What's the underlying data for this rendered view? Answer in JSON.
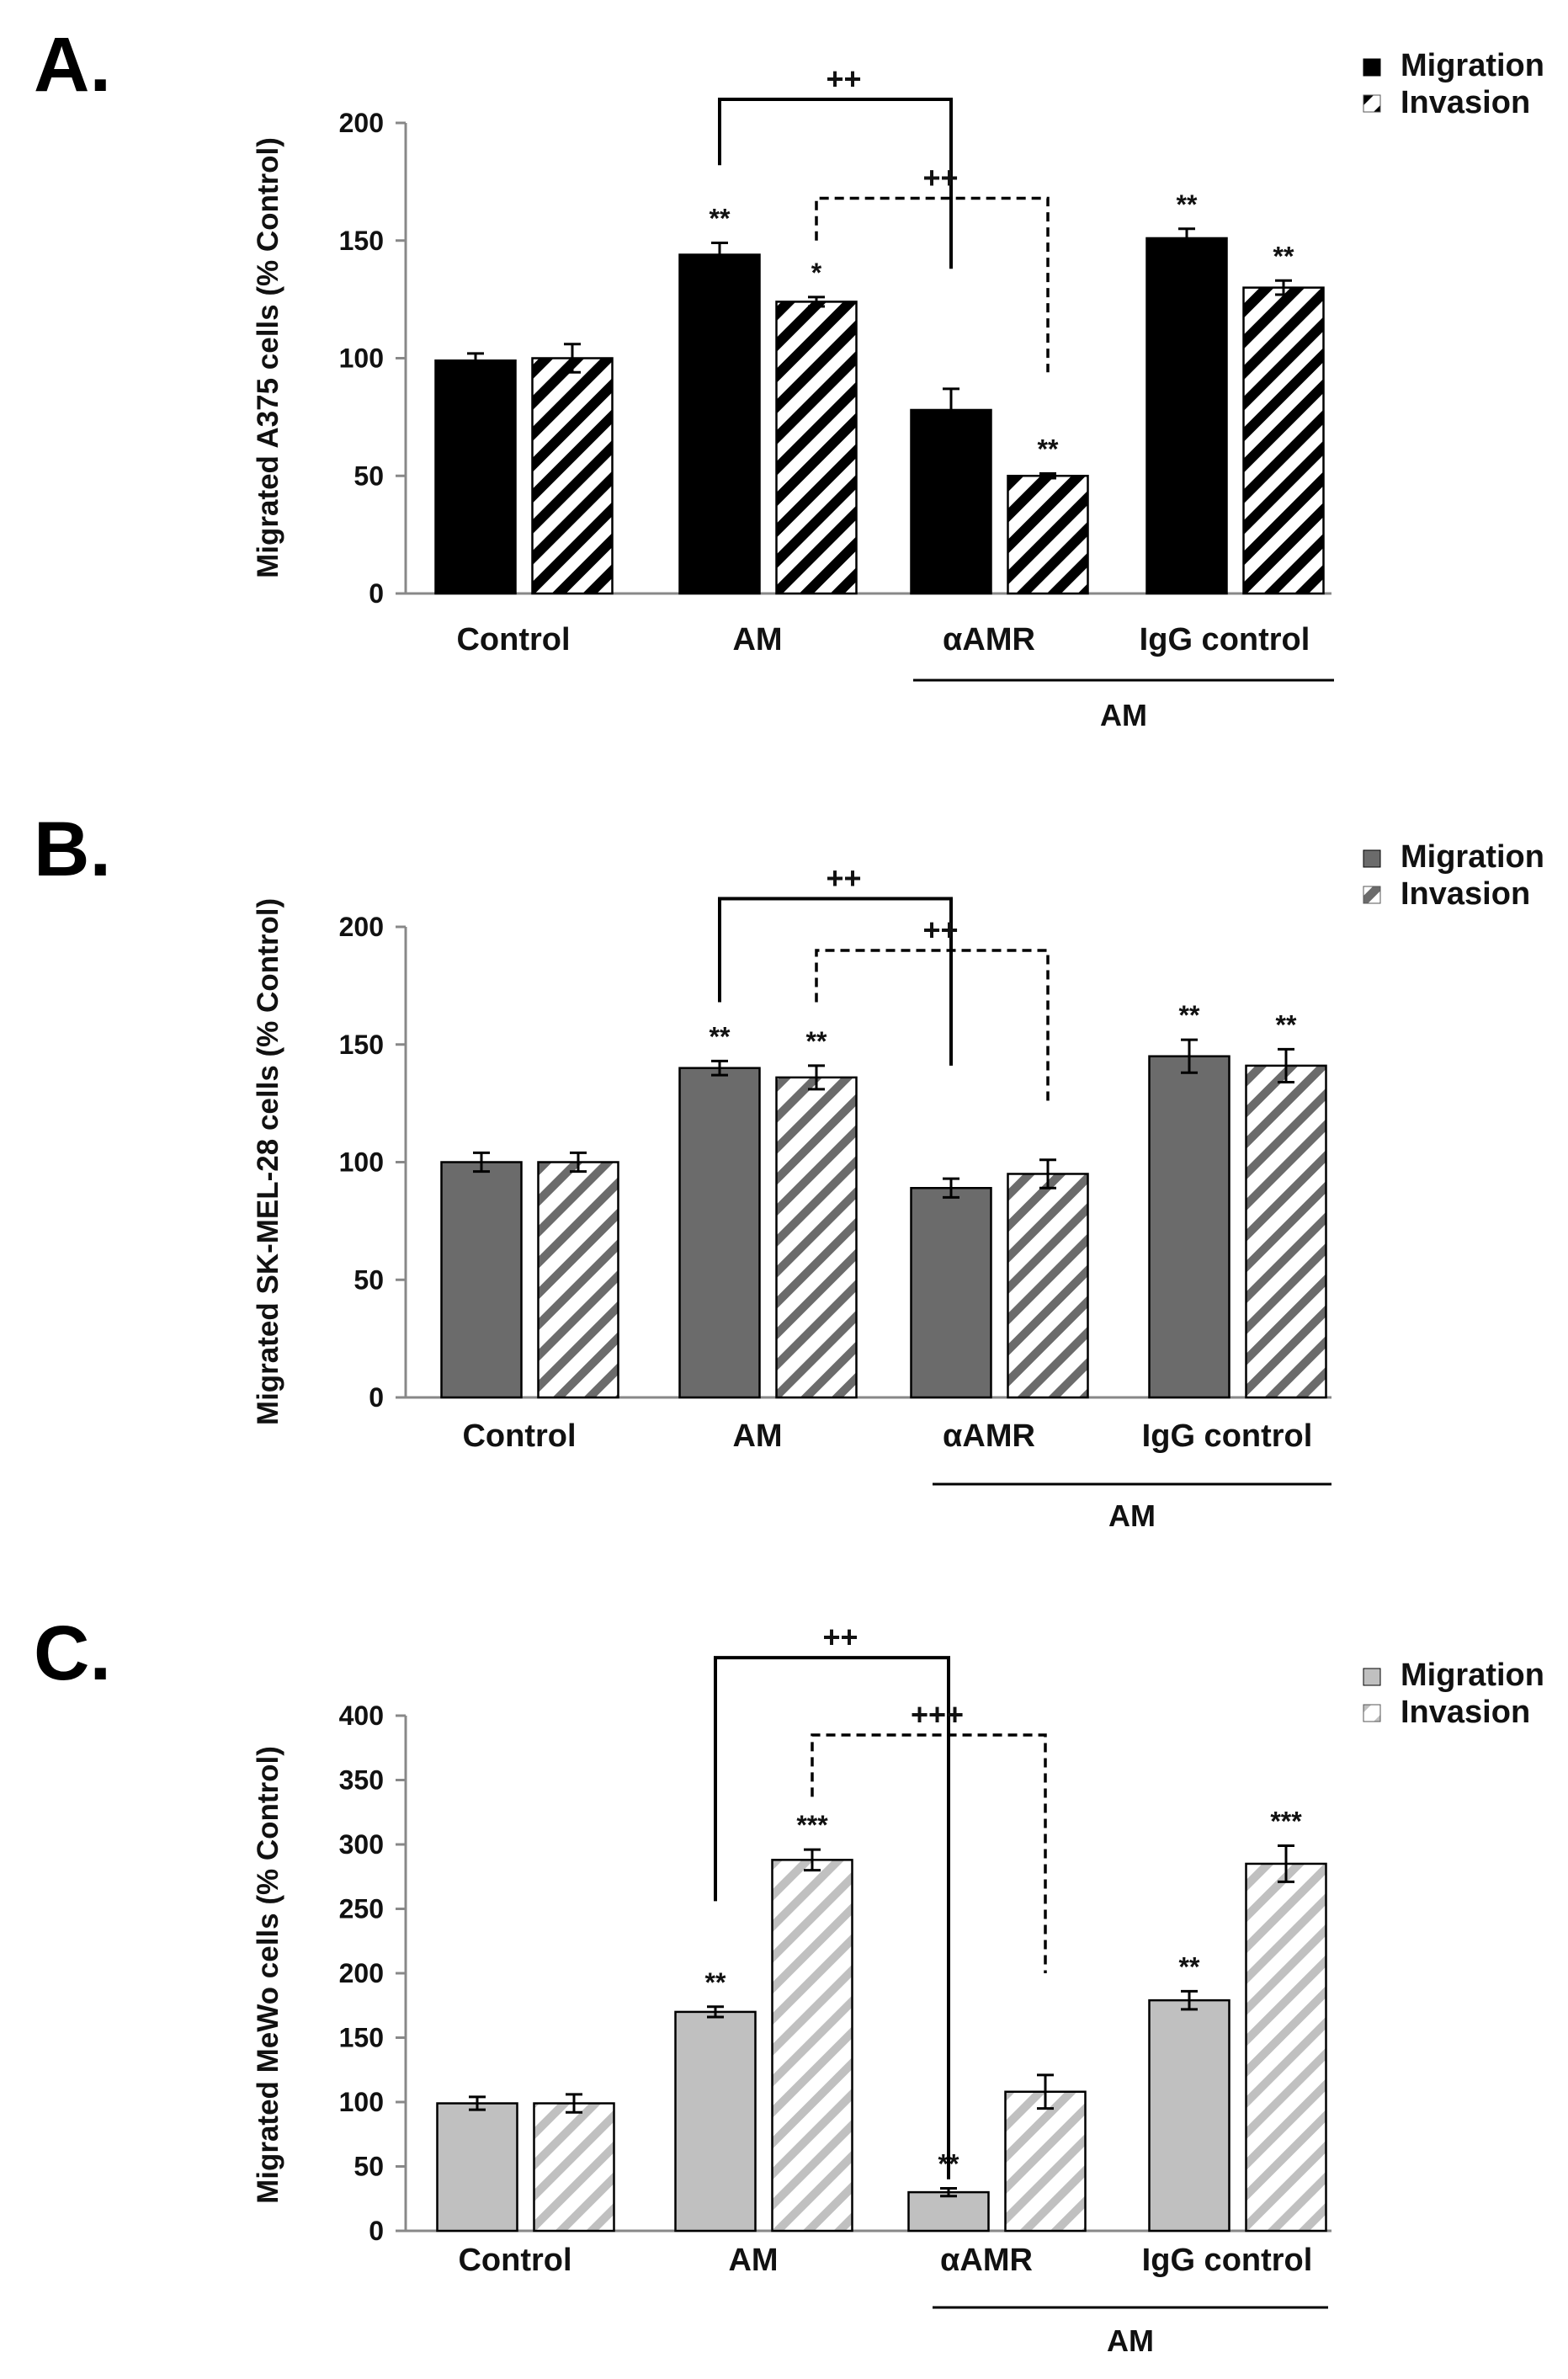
{
  "chart_data": [
    {
      "type": "bar",
      "panel_label": "A.",
      "ylabel": "Migrated A375 cells (% Control)",
      "ylim": [
        0,
        200
      ],
      "yticks": [
        0,
        50,
        100,
        150,
        200
      ],
      "categories": [
        "Control",
        "AM",
        "αAMR",
        "IgG control"
      ],
      "group_label": "AM",
      "legend": [
        "Migration",
        "Invasion"
      ],
      "series": [
        {
          "name": "Migration",
          "values": [
            99,
            144,
            78,
            151
          ],
          "errors": [
            3,
            5,
            9,
            4
          ],
          "sig": [
            "",
            "**",
            "",
            "**"
          ]
        },
        {
          "name": "Invasion",
          "values": [
            100,
            124,
            50,
            130
          ],
          "errors": [
            6,
            2,
            1,
            3
          ],
          "sig": [
            "",
            "*",
            "**",
            "**"
          ]
        }
      ],
      "brackets": [
        {
          "label": "++",
          "from": [
            1,
            0
          ],
          "to": [
            2,
            0
          ],
          "style": "solid",
          "top": 210,
          "left_end": 182,
          "right_end": 138
        },
        {
          "label": "++",
          "from": [
            1,
            1
          ],
          "to": [
            2,
            1
          ],
          "style": "dashed",
          "top": 168,
          "left_end": 150,
          "right_end": 94
        }
      ],
      "colors": {
        "fill": "#000000",
        "hatch_bg": "#ffffff"
      }
    },
    {
      "type": "bar",
      "panel_label": "B.",
      "ylabel": "Migrated SK-MEL-28 cells (% Control)",
      "ylim": [
        0,
        200
      ],
      "yticks": [
        0,
        50,
        100,
        150,
        200
      ],
      "categories": [
        "Control",
        "AM",
        "αAMR",
        "IgG control"
      ],
      "group_label": "AM",
      "legend": [
        "Migration",
        "Invasion"
      ],
      "series": [
        {
          "name": "Migration",
          "values": [
            100,
            140,
            89,
            145
          ],
          "errors": [
            4,
            3,
            4,
            7
          ],
          "sig": [
            "",
            "**",
            "",
            "**"
          ]
        },
        {
          "name": "Invasion",
          "values": [
            100,
            136,
            95,
            141
          ],
          "errors": [
            4,
            5,
            6,
            7
          ],
          "sig": [
            "",
            "**",
            "",
            "**"
          ]
        }
      ],
      "brackets": [
        {
          "label": "++",
          "from": [
            1,
            0
          ],
          "to": [
            2,
            0
          ],
          "style": "solid",
          "top": 212,
          "left_end": 168,
          "right_end": 141
        },
        {
          "label": "++",
          "from": [
            1,
            1
          ],
          "to": [
            2,
            1
          ],
          "style": "dashed",
          "top": 190,
          "left_end": 168,
          "right_end": 126
        }
      ],
      "colors": {
        "fill": "#6b6b6b",
        "hatch_bg": "#ffffff"
      }
    },
    {
      "type": "bar",
      "panel_label": "C.",
      "ylabel": "Migrated MeWo cells (% Control)",
      "ylim": [
        0,
        400
      ],
      "yticks": [
        0,
        50,
        100,
        150,
        200,
        250,
        300,
        350,
        400
      ],
      "categories": [
        "Control",
        "AM",
        "αAMR",
        "IgG control"
      ],
      "group_label": "AM",
      "legend": [
        "Migration",
        "Invasion"
      ],
      "series": [
        {
          "name": "Migration",
          "values": [
            99,
            170,
            30,
            179
          ],
          "errors": [
            5,
            4,
            3,
            7
          ],
          "sig": [
            "",
            "**",
            "**",
            "**"
          ]
        },
        {
          "name": "Invasion",
          "values": [
            99,
            288,
            108,
            285
          ],
          "errors": [
            7,
            8,
            13,
            14
          ],
          "sig": [
            "",
            "***",
            "",
            "***"
          ]
        }
      ],
      "brackets": [
        {
          "label": "++",
          "from": [
            1,
            0
          ],
          "to": [
            2,
            0
          ],
          "style": "solid",
          "top": 445,
          "left_end": 256,
          "right_end": 40
        },
        {
          "label": "+++",
          "from": [
            1,
            1
          ],
          "to": [
            2,
            1
          ],
          "style": "dashed",
          "top": 385,
          "left_end": 337,
          "right_end": 200
        }
      ],
      "colors": {
        "fill": "#c0c0c0",
        "hatch_bg": "#ffffff"
      }
    }
  ]
}
